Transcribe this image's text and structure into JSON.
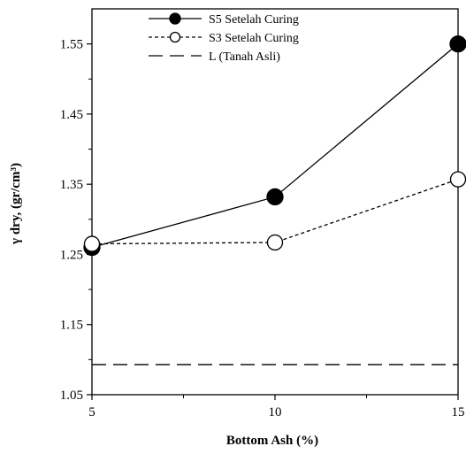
{
  "chart_data": {
    "type": "line",
    "xlabel": "Bottom Ash (%)",
    "ylabel": "γ dry, (gr/cm³)",
    "xlim": [
      5,
      15
    ],
    "ylim": [
      1.05,
      1.6
    ],
    "xticks": [
      "5",
      "10",
      "15"
    ],
    "yticks": [
      "1.05",
      "1.15",
      "1.25",
      "1.35",
      "1.45",
      "1.55"
    ],
    "legend_position": "top-center",
    "grid": false,
    "series": [
      {
        "name": "S5 Setelah Curing",
        "style": "solid",
        "marker": "filled-circle",
        "x": [
          5,
          10,
          15
        ],
        "y": [
          1.26,
          1.332,
          1.55
        ]
      },
      {
        "name": "S3 Setelah Curing",
        "style": "dotted",
        "marker": "open-circle",
        "x": [
          5,
          10,
          15
        ],
        "y": [
          1.265,
          1.267,
          1.357
        ]
      },
      {
        "name": "L (Tanah Asli)",
        "style": "dashed",
        "marker": "none",
        "x": [
          5,
          15
        ],
        "y": [
          1.093,
          1.093
        ]
      }
    ]
  }
}
